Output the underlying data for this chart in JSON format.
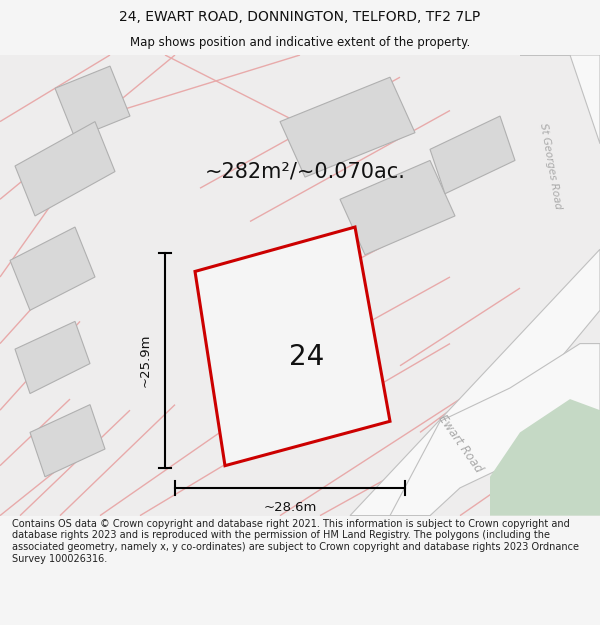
{
  "title_line1": "24, EWART ROAD, DONNINGTON, TELFORD, TF2 7LP",
  "title_line2": "Map shows position and indicative extent of the property.",
  "area_label": "~282m²/~0.070ac.",
  "number_label": "24",
  "dim_width": "~28.6m",
  "dim_height": "~25.9m",
  "road_label1": "Ewart Road",
  "road_label2": "St Georges Road",
  "footer_text": "Contains OS data © Crown copyright and database right 2021. This information is subject to Crown copyright and database rights 2023 and is reproduced with the permission of HM Land Registry. The polygons (including the associated geometry, namely x, y co-ordinates) are subject to Crown copyright and database rights 2023 Ordnance Survey 100026316.",
  "bg_color": "#f5f5f5",
  "map_bg": "#eeeded",
  "property_fill": "#f5f5f5",
  "property_edge": "#cc0000",
  "building_fill": "#d8d8d8",
  "building_edge": "#b0b0b0",
  "pink_line": "#e8aaaa",
  "green_fill": "#c5d9c5",
  "road_white": "#f8f8f8",
  "road_border": "#c0c0c0",
  "dim_color": "#111111",
  "title_color": "#111111",
  "footer_color": "#222222"
}
